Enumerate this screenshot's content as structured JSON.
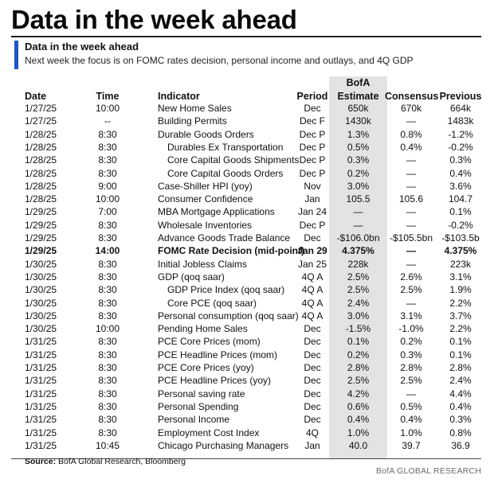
{
  "headline": "Data in the week ahead",
  "panel": {
    "title": "Data in the week ahead",
    "subtitle": "Next week the focus is on FOMC rates decision, personal income and outlays, and 4Q GDP"
  },
  "columns": {
    "date": "Date",
    "time": "Time",
    "indicator": "Indicator",
    "period": "Period",
    "bofa_line1": "BofA",
    "bofa_line2": "Estimate",
    "consensus": "Consensus",
    "previous": "Previous"
  },
  "rows": [
    {
      "date": "1/27/25",
      "time": "10:00",
      "indicator": "New Home Sales",
      "period": "Dec",
      "estimate": "650k",
      "consensus": "670k",
      "previous": "664k",
      "sub": false,
      "bold": false
    },
    {
      "date": "1/27/25",
      "time": "--",
      "indicator": "Building Permits",
      "period": "Dec F",
      "estimate": "1430k",
      "consensus": "—",
      "previous": "1483k",
      "sub": false,
      "bold": false
    },
    {
      "date": "1/28/25",
      "time": "8:30",
      "indicator": "Durable Goods Orders",
      "period": "Dec P",
      "estimate": "1.3%",
      "consensus": "0.8%",
      "previous": "-1.2%",
      "sub": false,
      "bold": false
    },
    {
      "date": "1/28/25",
      "time": "8:30",
      "indicator": "Durables Ex Transportation",
      "period": "Dec P",
      "estimate": "0.5%",
      "consensus": "0.4%",
      "previous": "-0.2%",
      "sub": true,
      "bold": false
    },
    {
      "date": "1/28/25",
      "time": "8:30",
      "indicator": "Core Capital Goods Shipments",
      "period": "Dec P",
      "estimate": "0.3%",
      "consensus": "—",
      "previous": "0.3%",
      "sub": true,
      "bold": false
    },
    {
      "date": "1/28/25",
      "time": "8:30",
      "indicator": "Core Capital Goods Orders",
      "period": "Dec P",
      "estimate": "0.2%",
      "consensus": "—",
      "previous": "0.4%",
      "sub": true,
      "bold": false
    },
    {
      "date": "1/28/25",
      "time": "9:00",
      "indicator": "Case-Shiller HPI (yoy)",
      "period": "Nov",
      "estimate": "3.0%",
      "consensus": "—",
      "previous": "3.6%",
      "sub": false,
      "bold": false
    },
    {
      "date": "1/28/25",
      "time": "10:00",
      "indicator": "Consumer Confidence",
      "period": "Jan",
      "estimate": "105.5",
      "consensus": "105.6",
      "previous": "104.7",
      "sub": false,
      "bold": false
    },
    {
      "date": "1/29/25",
      "time": "7:00",
      "indicator": "MBA Mortgage Applications",
      "period": "Jan 24",
      "estimate": "—",
      "consensus": "—",
      "previous": "0.1%",
      "sub": false,
      "bold": false
    },
    {
      "date": "1/29/25",
      "time": "8:30",
      "indicator": "Wholesale Inventories",
      "period": "Dec P",
      "estimate": "—",
      "consensus": "—",
      "previous": "-0.2%",
      "sub": false,
      "bold": false
    },
    {
      "date": "1/29/25",
      "time": "8:30",
      "indicator": "Advance Goods Trade Balance",
      "period": "Dec",
      "estimate": "-$106.0bn",
      "consensus": "-$105.5bn",
      "previous": "-$103.5b",
      "sub": false,
      "bold": false
    },
    {
      "date": "1/29/25",
      "time": "14:00",
      "indicator": "FOMC Rate Decision (mid-point)",
      "period": "Jan 29",
      "estimate": "4.375%",
      "consensus": "—",
      "previous": "4.375%",
      "sub": false,
      "bold": true
    },
    {
      "date": "1/30/25",
      "time": "8:30",
      "indicator": "Initial Jobless Claims",
      "period": "Jan 25",
      "estimate": "228k",
      "consensus": "—",
      "previous": "223k",
      "sub": false,
      "bold": false
    },
    {
      "date": "1/30/25",
      "time": "8:30",
      "indicator": "GDP (qoq saar)",
      "period": "4Q A",
      "estimate": "2.5%",
      "consensus": "2.6%",
      "previous": "3.1%",
      "sub": false,
      "bold": false
    },
    {
      "date": "1/30/25",
      "time": "8:30",
      "indicator": "GDP Price Index (qoq saar)",
      "period": "4Q A",
      "estimate": "2.5%",
      "consensus": "2.5%",
      "previous": "1.9%",
      "sub": true,
      "bold": false
    },
    {
      "date": "1/30/25",
      "time": "8:30",
      "indicator": "Core PCE (qoq saar)",
      "period": "4Q A",
      "estimate": "2.4%",
      "consensus": "—",
      "previous": "2.2%",
      "sub": true,
      "bold": false
    },
    {
      "date": "1/30/25",
      "time": "8:30",
      "indicator": "Personal consumption (qoq saar)",
      "period": "4Q A",
      "estimate": "3.0%",
      "consensus": "3.1%",
      "previous": "3.7%",
      "sub": false,
      "bold": false
    },
    {
      "date": "1/30/25",
      "time": "10:00",
      "indicator": "Pending Home Sales",
      "period": "Dec",
      "estimate": "-1.5%",
      "consensus": "-1.0%",
      "previous": "2.2%",
      "sub": false,
      "bold": false
    },
    {
      "date": "1/31/25",
      "time": "8:30",
      "indicator": "PCE Core Prices (mom)",
      "period": "Dec",
      "estimate": "0.1%",
      "consensus": "0.2%",
      "previous": "0.1%",
      "sub": false,
      "bold": false
    },
    {
      "date": "1/31/25",
      "time": "8:30",
      "indicator": "PCE Headline Prices (mom)",
      "period": "Dec",
      "estimate": "0.2%",
      "consensus": "0.3%",
      "previous": "0.1%",
      "sub": false,
      "bold": false
    },
    {
      "date": "1/31/25",
      "time": "8:30",
      "indicator": "PCE Core Prices (yoy)",
      "period": "Dec",
      "estimate": "2.8%",
      "consensus": "2.8%",
      "previous": "2.8%",
      "sub": false,
      "bold": false
    },
    {
      "date": "1/31/25",
      "time": "8:30",
      "indicator": "PCE Headline Prices (yoy)",
      "period": "Dec",
      "estimate": "2.5%",
      "consensus": "2.5%",
      "previous": "2.4%",
      "sub": false,
      "bold": false
    },
    {
      "date": "1/31/25",
      "time": "8:30",
      "indicator": "Personal saving rate",
      "period": "Dec",
      "estimate": "4.2%",
      "consensus": "—",
      "previous": "4.4%",
      "sub": false,
      "bold": false
    },
    {
      "date": "1/31/25",
      "time": "8:30",
      "indicator": "Personal Spending",
      "period": "Dec",
      "estimate": "0.6%",
      "consensus": "0.5%",
      "previous": "0.4%",
      "sub": false,
      "bold": false
    },
    {
      "date": "1/31/25",
      "time": "8:30",
      "indicator": "Personal Income",
      "period": "Dec",
      "estimate": "0.4%",
      "consensus": "0.4%",
      "previous": "0.3%",
      "sub": false,
      "bold": false
    },
    {
      "date": "1/31/25",
      "time": "8:30",
      "indicator": "Employment Cost Index",
      "period": "4Q",
      "estimate": "1.0%",
      "consensus": "1.0%",
      "previous": "0.8%",
      "sub": false,
      "bold": false
    },
    {
      "date": "1/31/25",
      "time": "10:45",
      "indicator": "Chicago Purchasing Managers",
      "period": "Jan",
      "estimate": "40.0",
      "consensus": "39.7",
      "previous": "36.9",
      "sub": false,
      "bold": false
    }
  ],
  "footer": {
    "source_label": "Source:",
    "source_text": " BofA Global Research, Bloomberg",
    "brand": "BofA GLOBAL RESEARCH"
  },
  "colors": {
    "accent": "#1e55c8",
    "estimate_shade": "#e3e3e3"
  }
}
